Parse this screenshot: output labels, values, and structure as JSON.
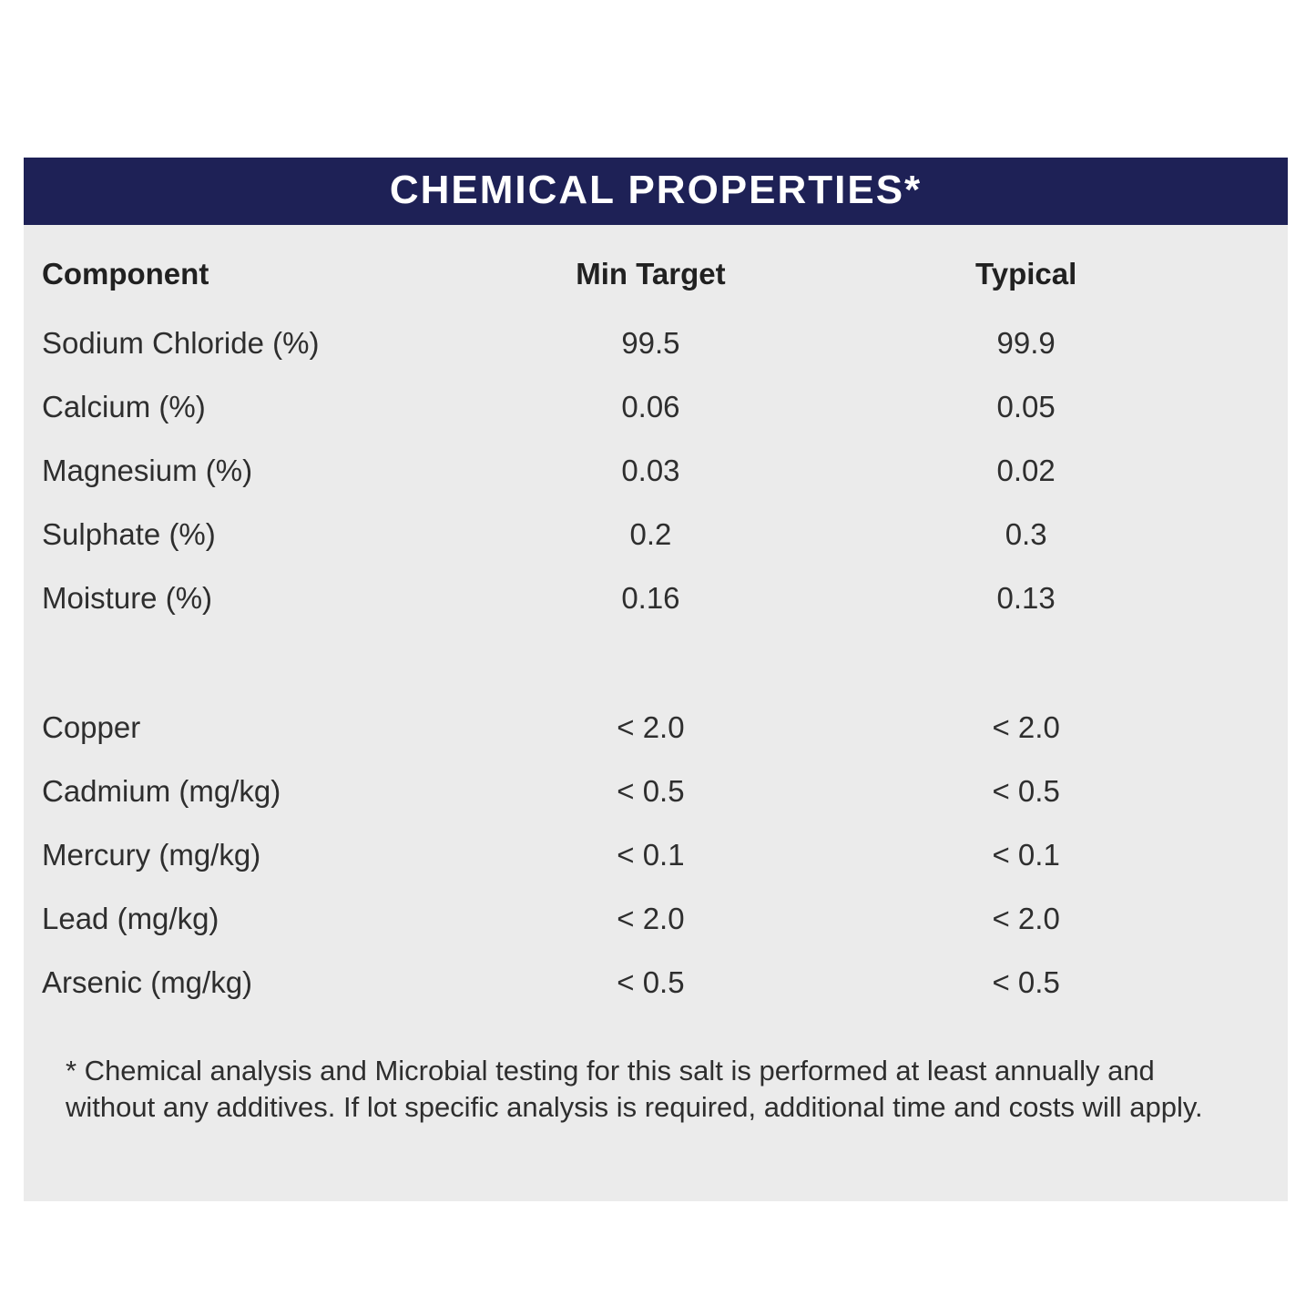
{
  "title": "CHEMICAL PROPERTIES*",
  "colors": {
    "header_bar_bg": "#1e2156",
    "panel_bg": "#ebebeb",
    "title_text": "#ffffff",
    "body_text": "#2e2e2e"
  },
  "table": {
    "columns": {
      "component": "Component",
      "min_target": "Min Target",
      "typical": "Typical"
    },
    "rows_group1": [
      {
        "component": "Sodium Chloride (%)",
        "min_target": "99.5",
        "typical": "99.9"
      },
      {
        "component": "Calcium (%)",
        "min_target": "0.06",
        "typical": "0.05"
      },
      {
        "component": "Magnesium (%)",
        "min_target": "0.03",
        "typical": "0.02"
      },
      {
        "component": "Sulphate (%)",
        "min_target": "0.2",
        "typical": "0.3"
      },
      {
        "component": "Moisture (%)",
        "min_target": "0.16",
        "typical": "0.13"
      }
    ],
    "rows_group2": [
      {
        "component": "Copper",
        "min_target": "< 2.0",
        "typical": "< 2.0"
      },
      {
        "component": "Cadmium (mg/kg)",
        "min_target": "< 0.5",
        "typical": "< 0.5"
      },
      {
        "component": "Mercury (mg/kg)",
        "min_target": "< 0.1",
        "typical": "< 0.1"
      },
      {
        "component": "Lead (mg/kg)",
        "min_target": "< 2.0",
        "typical": "< 2.0"
      },
      {
        "component": "Arsenic (mg/kg)",
        "min_target": "< 0.5",
        "typical": "< 0.5"
      }
    ]
  },
  "footnote": "* Chemical analysis and Microbial testing for this salt is performed at least annually and without any additives. If lot specific analysis is required, additional time and costs will apply."
}
